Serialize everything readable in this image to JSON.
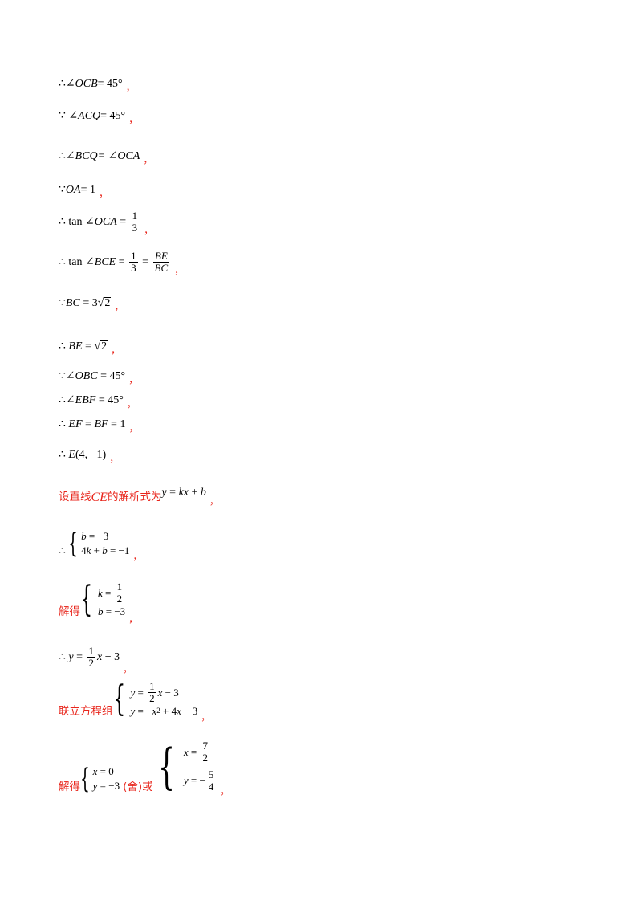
{
  "lines": [
    {
      "pre": "∴∠",
      "v": "OCB",
      "post": " = 45°"
    },
    {
      "pre": "∵ ∠",
      "v": "ACQ",
      "post": " = 45°"
    },
    {
      "pre": "∴∠",
      "v": "BCQ",
      "post": " = ∠OCA"
    },
    {
      "pre": "∵",
      "v": "OA",
      "post": " = 1"
    }
  ],
  "texts": {
    "comma": "，",
    "tan": "tan",
    "therefore": "∴",
    "because": "∵",
    "one": "1",
    "three": "3",
    "two": "2",
    "seven": "7",
    "five": "5",
    "four": "4",
    "BE": "BE",
    "BC": "BC",
    "set_line": "设直线",
    "CE": "CE",
    "analytic": " 的解析式为",
    "jiede": "解得",
    "lianli": "联立方程组",
    "she": "舍",
    "huo": "或"
  }
}
